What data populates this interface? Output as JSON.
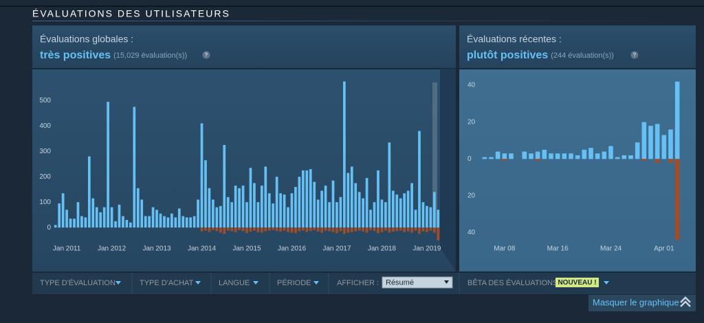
{
  "header": {
    "title": "ÉVALUATIONS DES UTILISATEURS"
  },
  "panels": [
    {
      "heading": "Évaluations globales :",
      "rating": "très positives",
      "count": "(15,029 évaluation(s))",
      "help": "?"
    },
    {
      "heading": "Évaluations récentes :",
      "rating": "plutôt positives",
      "count": "(244 évaluation(s))",
      "help": "?"
    }
  ],
  "filters": [
    "TYPE D'ÉVALUATION",
    "TYPE D'ACHAT",
    "LANGUE",
    "PÉRIODE"
  ],
  "display": {
    "label": "AFFICHER :",
    "selected": "Résumé"
  },
  "beta": {
    "label": "BÊTA DES ÉVALUATIONS",
    "badge": "NOUVEAU !"
  },
  "toggle": "Masquer le graphique",
  "chart_data": [
    {
      "type": "bar",
      "stacked": true,
      "categories": [
        null,
        null,
        null,
        "Jan 2011",
        null,
        null,
        null,
        null,
        null,
        null,
        null,
        null,
        null,
        null,
        null,
        "Jan 2012",
        null,
        null,
        null,
        null,
        null,
        null,
        null,
        null,
        null,
        null,
        null,
        "Jan 2013",
        null,
        null,
        null,
        null,
        null,
        null,
        null,
        null,
        null,
        null,
        null,
        "Jan 2014",
        null,
        null,
        null,
        null,
        null,
        null,
        null,
        null,
        null,
        null,
        null,
        "Jan 2015",
        null,
        null,
        null,
        null,
        null,
        null,
        null,
        null,
        null,
        null,
        null,
        "Jan 2016",
        null,
        null,
        null,
        null,
        null,
        null,
        null,
        null,
        null,
        null,
        null,
        "Jan 2017",
        null,
        null,
        null,
        null,
        null,
        null,
        null,
        null,
        null,
        null,
        null,
        "Jan 2018",
        null,
        null,
        null,
        null,
        null,
        null,
        null,
        null,
        null,
        null,
        null,
        "Jan 2019",
        null,
        null,
        null
      ],
      "series": [
        {
          "color": "#66c0f4",
          "values": [
            10,
            95,
            135,
            70,
            35,
            35,
            100,
            45,
            40,
            280,
            115,
            80,
            60,
            80,
            495,
            80,
            25,
            90,
            45,
            30,
            20,
            475,
            155,
            110,
            45,
            45,
            80,
            70,
            55,
            45,
            40,
            55,
            40,
            75,
            45,
            40,
            40,
            45,
            110,
            410,
            265,
            155,
            110,
            80,
            85,
            325,
            120,
            100,
            165,
            155,
            165,
            100,
            235,
            175,
            100,
            165,
            240,
            135,
            95,
            200,
            135,
            130,
            80,
            135,
            160,
            200,
            225,
            225,
            230,
            180,
            110,
            145,
            165,
            100,
            185,
            100,
            120,
            575,
            215,
            240,
            175,
            140,
            115,
            195,
            70,
            100,
            225,
            110,
            100,
            335,
            145,
            130,
            115,
            135,
            145,
            175,
            70,
            380,
            100,
            85,
            80,
            140,
            70
          ]
        },
        {
          "color": "#a34c25",
          "values": [
            0,
            0,
            0,
            0,
            0,
            0,
            0,
            0,
            0,
            0,
            0,
            0,
            0,
            0,
            0,
            0,
            0,
            0,
            0,
            0,
            0,
            0,
            0,
            0,
            0,
            0,
            0,
            0,
            0,
            0,
            0,
            0,
            0,
            0,
            0,
            0,
            0,
            0,
            0,
            -15,
            -12,
            -18,
            -10,
            -14,
            -20,
            -25,
            -12,
            -15,
            -18,
            -10,
            -14,
            -22,
            -16,
            -12,
            -18,
            -20,
            -15,
            -12,
            -10,
            -14,
            -16,
            -12,
            -18,
            -20,
            -22,
            -15,
            -12,
            -18,
            -14,
            -10,
            -16,
            -20,
            -12,
            -15,
            -18,
            -22,
            -14,
            -25,
            -20,
            -18,
            -15,
            -12,
            -16,
            -20,
            -10,
            -14,
            -22,
            -18,
            -12,
            -20,
            -16,
            -14,
            -12,
            -18,
            -15,
            -20,
            -12,
            -25,
            -15,
            -18,
            -12,
            -20,
            -50
          ]
        }
      ],
      "ylim": [
        -70,
        590
      ],
      "yticks": [
        0,
        100,
        200,
        300,
        400,
        500
      ]
    },
    {
      "type": "bar",
      "stacked": true,
      "categories": [
        null,
        null,
        null,
        "Mar 08",
        null,
        null,
        null,
        null,
        null,
        null,
        null,
        "Mar 16",
        null,
        null,
        null,
        null,
        null,
        null,
        null,
        "Mar 24",
        null,
        null,
        null,
        null,
        null,
        null,
        null,
        "Apr 01",
        null,
        null
      ],
      "series": [
        {
          "color": "#66c0f4",
          "values": [
            1,
            1,
            4,
            3,
            3,
            0,
            4,
            3,
            4,
            5,
            3,
            3,
            3,
            3,
            2,
            5,
            6,
            3,
            4,
            7,
            1,
            2,
            2,
            9,
            20,
            18,
            19,
            13,
            16,
            42
          ]
        },
        {
          "color": "#a34c25",
          "values": [
            0,
            0,
            0,
            -1,
            0,
            0,
            0,
            0,
            -1,
            0,
            0,
            0,
            0,
            0,
            0,
            0,
            0,
            0,
            0,
            0,
            0,
            0,
            0,
            0,
            -1,
            0,
            -2,
            0,
            -2,
            -44
          ]
        }
      ],
      "ylim": [
        -48,
        46
      ],
      "yticks": [
        {
          "value": -40,
          "label": "40"
        },
        {
          "value": -20,
          "label": "20"
        },
        0,
        20,
        40
      ]
    }
  ]
}
